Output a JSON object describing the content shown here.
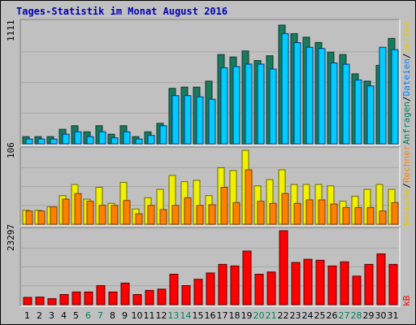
{
  "title": "Tages-Statistik im Monat August 2016",
  "colors": {
    "background": "#c0c0c0",
    "title": "#0000b4",
    "hits": "#1a7a5e",
    "files": "#0080ff",
    "files_fill": "#00ccff",
    "pages": "#f0f000",
    "visits": "#ff8000",
    "kbytes": "#ff0000",
    "weekend": "#00805b",
    "axis_text": "#000000"
  },
  "right_labels": {
    "top_parts": [
      {
        "text": "Anfragen",
        "color": "#00805b"
      },
      {
        "text": "/",
        "color": "#000000"
      },
      {
        "text": "Dateien",
        "color": "#0080ff"
      },
      {
        "text": "/",
        "color": "#000000"
      },
      {
        "text": "Seiten",
        "color": "#e6c800"
      }
    ],
    "middle_parts": [
      {
        "text": "Besuche",
        "color": "#e6c800"
      },
      {
        "text": "/",
        "color": "#000000"
      },
      {
        "text": "Rechner",
        "color": "#ff8000"
      }
    ],
    "bottom": {
      "text": "kB",
      "color": "#ff0000"
    }
  },
  "chart_data": [
    {
      "type": "bar",
      "panel": "top",
      "ymax_label": "1111",
      "ylim": [
        0,
        1111
      ],
      "categories": [
        "1",
        "2",
        "3",
        "4",
        "5",
        "6",
        "7",
        "8",
        "9",
        "10",
        "11",
        "12",
        "13",
        "14",
        "15",
        "16",
        "17",
        "18",
        "19",
        "20",
        "21",
        "22",
        "23",
        "24",
        "25",
        "26",
        "27",
        "28",
        "29",
        "30",
        "31"
      ],
      "weekend_days": [
        "6",
        "7",
        "13",
        "14",
        "20",
        "21",
        "27",
        "28"
      ],
      "series": [
        {
          "name": "Anfragen",
          "values": [
            66,
            66,
            66,
            133,
            166,
            110,
            166,
            88,
            166,
            66,
            110,
            188,
            509,
            520,
            520,
            575,
            819,
            797,
            852,
            764,
            808,
            1089,
            1011,
            978,
            930,
            841,
            819,
            642,
            575,
            720,
            967
          ]
        },
        {
          "name": "Dateien",
          "values": [
            44,
            44,
            44,
            88,
            110,
            66,
            110,
            55,
            110,
            44,
            77,
            166,
            442,
            442,
            431,
            409,
            698,
            709,
            731,
            731,
            686,
            1011,
            928,
            886,
            874,
            742,
            730,
            586,
            531,
            886,
            864
          ]
        }
      ]
    },
    {
      "type": "bar",
      "panel": "middle",
      "ymax_label": "106",
      "ylim": [
        0,
        106
      ],
      "categories": [
        "1",
        "2",
        "3",
        "4",
        "5",
        "6",
        "7",
        "8",
        "9",
        "10",
        "11",
        "12",
        "13",
        "14",
        "15",
        "16",
        "17",
        "18",
        "19",
        "20",
        "21",
        "22",
        "23",
        "24",
        "25",
        "26",
        "27",
        "28",
        "29",
        "30",
        "31"
      ],
      "series": [
        {
          "name": "Seiten",
          "values": [
            20,
            20,
            25,
            41,
            57,
            36,
            53,
            30,
            60,
            22,
            38,
            50,
            70,
            61,
            63,
            41,
            81,
            77,
            106,
            55,
            64,
            78,
            57,
            57,
            57,
            55,
            33,
            40,
            50,
            57,
            50
          ]
        },
        {
          "name": "Besuche",
          "values": [
            19,
            19,
            25,
            36,
            44,
            33,
            27,
            27,
            34,
            15,
            27,
            21,
            27,
            38,
            27,
            28,
            53,
            31,
            78,
            33,
            30,
            44,
            30,
            35,
            35,
            29,
            24,
            24,
            24,
            19,
            31
          ]
        }
      ]
    },
    {
      "type": "bar",
      "panel": "bottom",
      "ymax_label": "23297",
      "ylim": [
        0,
        23297
      ],
      "categories": [
        "1",
        "2",
        "3",
        "4",
        "5",
        "6",
        "7",
        "8",
        "9",
        "10",
        "11",
        "12",
        "13",
        "14",
        "15",
        "16",
        "17",
        "18",
        "19",
        "20",
        "21",
        "22",
        "23",
        "24",
        "25",
        "26",
        "27",
        "28",
        "29",
        "30",
        "31"
      ],
      "series": [
        {
          "name": "kB",
          "values": [
            2300,
            2400,
            1900,
            3200,
            4000,
            4000,
            6000,
            4000,
            6800,
            3200,
            4500,
            4900,
            9600,
            6000,
            8000,
            10000,
            12700,
            12200,
            16900,
            9600,
            10300,
            23297,
            13300,
            14300,
            14000,
            12200,
            13500,
            9000,
            12700,
            16000,
            12700
          ]
        }
      ]
    }
  ]
}
